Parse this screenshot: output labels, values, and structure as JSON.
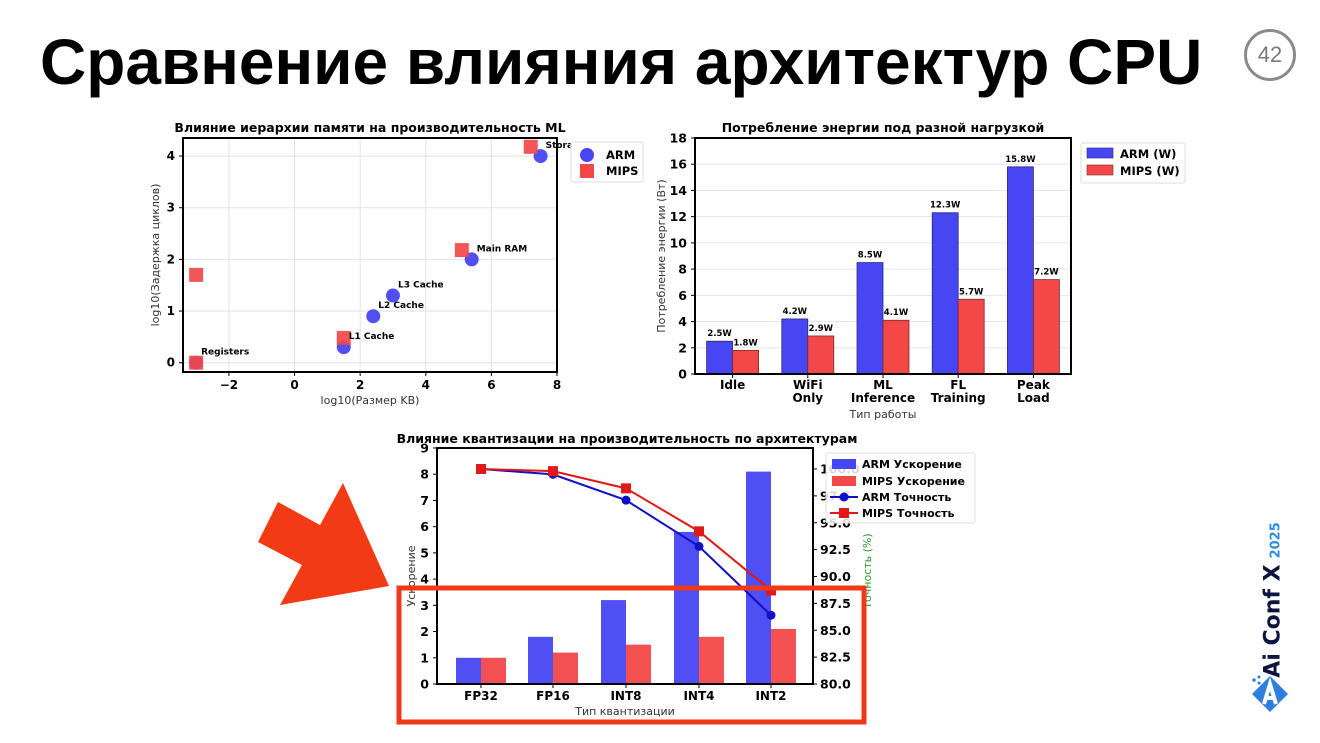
{
  "slide": {
    "title": "Сравнение влияния архитектур CPU",
    "page_number": "42",
    "logo": {
      "name": "Ai Conf X",
      "year": "2025"
    }
  },
  "colors": {
    "arm": "#4646f2",
    "mips": "#f24848",
    "arm_line": "#1010c8",
    "mips_line": "#e01818",
    "highlight": "#ef3a1a",
    "arrow": "#f23a14"
  },
  "chart_data": [
    {
      "type": "scatter",
      "title": "Влияние иерархии памяти на производительность ML",
      "xlabel": "log10(Размер KB)",
      "ylabel": "log10(Задержка циклов)",
      "xlim": [
        -3.4,
        8
      ],
      "ylim": [
        -0.18,
        4.35
      ],
      "xticks": [
        -2,
        0,
        2,
        4,
        6,
        8
      ],
      "yticks": [
        0,
        1,
        2,
        3,
        4
      ],
      "grid": true,
      "legend_position": "upper right outside",
      "series": [
        {
          "name": "ARM",
          "marker": "circle",
          "points": [
            {
              "label": "Registers",
              "x": -3.0,
              "y": 0.0
            },
            {
              "label": "L1 Cache",
              "x": 1.5,
              "y": 0.3
            },
            {
              "label": "L2 Cache",
              "x": 2.4,
              "y": 0.9
            },
            {
              "label": "L3 Cache",
              "x": 3.0,
              "y": 1.3
            },
            {
              "label": "Main RAM",
              "x": 5.4,
              "y": 2.0
            },
            {
              "label": "Storage",
              "x": 7.5,
              "y": 4.0
            }
          ]
        },
        {
          "name": "MIPS",
          "marker": "square",
          "points": [
            {
              "x": -3.0,
              "y": 0.0
            },
            {
              "x": -3.0,
              "y": 1.7
            },
            {
              "x": 1.5,
              "y": 0.48
            },
            {
              "x": 5.1,
              "y": 2.18
            },
            {
              "x": 7.2,
              "y": 4.18
            }
          ]
        }
      ],
      "annotations": [
        "Registers",
        "L1 Cache",
        "L2 Cache",
        "L3 Cache",
        "Main RAM",
        "Storage"
      ]
    },
    {
      "type": "bar",
      "title": "Потребление энергии под разной нагрузкой",
      "xlabel": "Тип работы",
      "ylabel": "Потребление энергии (Вт)",
      "ylim": [
        0,
        18
      ],
      "yticks": [
        0,
        2,
        4,
        6,
        8,
        10,
        12,
        14,
        16,
        18
      ],
      "grid": true,
      "legend_position": "upper right outside",
      "categories": [
        "Idle",
        "WiFi\nOnly",
        "ML\nInference",
        "FL\nTraining",
        "Peak\nLoad"
      ],
      "series": [
        {
          "name": "ARM (W)",
          "values": [
            2.5,
            4.2,
            8.5,
            12.3,
            15.8
          ],
          "labels": [
            "2.5W",
            "4.2W",
            "8.5W",
            "12.3W",
            "15.8W"
          ]
        },
        {
          "name": "MIPS (W)",
          "values": [
            1.8,
            2.9,
            4.1,
            5.7,
            7.2
          ],
          "labels": [
            "1.8W",
            "2.9W",
            "4.1W",
            "5.7W",
            "7.2W"
          ]
        }
      ]
    },
    {
      "type": "bar+line",
      "title": "Влияние квантизации на производительность по архитектурам",
      "xlabel": "Тип квантизации",
      "ylabel": "Ускорение",
      "ylabel_right": "Точность (%)",
      "ylim": [
        0,
        9
      ],
      "ylim_right": [
        80.0,
        102.0
      ],
      "yticks": [
        0,
        1,
        2,
        3,
        4,
        5,
        6,
        7,
        8,
        9
      ],
      "yticks_right": [
        "80.0",
        "82.5",
        "85.0",
        "87.5",
        "90.0",
        "92.5",
        "95.0",
        "97.5",
        "100.0"
      ],
      "grid": false,
      "legend_position": "upper right outside",
      "categories": [
        "FP32",
        "FP16",
        "INT8",
        "INT4",
        "INT2"
      ],
      "series": [
        {
          "name": "ARM Ускорение",
          "kind": "bar",
          "axis": "left",
          "values": [
            1.0,
            1.8,
            3.2,
            5.8,
            8.1
          ]
        },
        {
          "name": "MIPS Ускорение",
          "kind": "bar",
          "axis": "left",
          "values": [
            1.0,
            1.2,
            1.5,
            1.8,
            2.1
          ]
        },
        {
          "name": "ARM Точность",
          "kind": "line",
          "marker": "circle",
          "axis": "right",
          "values": [
            100.0,
            99.5,
            97.1,
            92.8,
            86.4
          ]
        },
        {
          "name": "MIPS Точность",
          "kind": "line",
          "marker": "square",
          "axis": "right",
          "values": [
            100.0,
            99.8,
            98.2,
            94.2,
            88.7
          ]
        }
      ]
    }
  ]
}
